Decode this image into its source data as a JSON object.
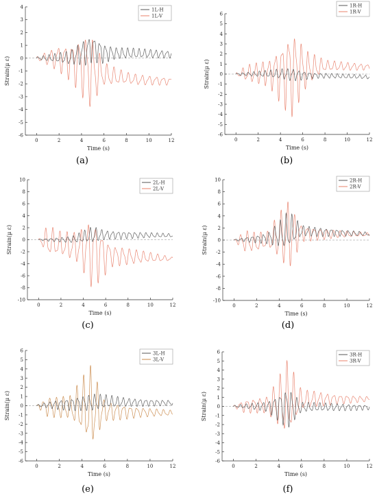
{
  "colors": {
    "h_series": "#555555",
    "v_series": "#e8806a",
    "v_series_alt": "#c9894a"
  },
  "chart_data": [
    {
      "panel": "(a)",
      "type": "line",
      "xlabel": "Time (s)",
      "ylabel": "Strain(μ ε)",
      "xlim": [
        -1,
        12
      ],
      "ylim": [
        -6,
        4
      ],
      "xticks": [
        0,
        2,
        4,
        6,
        8,
        10,
        12
      ],
      "yticks": [
        -6,
        -5,
        -4,
        -3,
        -2,
        -1,
        0,
        1,
        2,
        3,
        4
      ],
      "legend": "top-right",
      "series": [
        {
          "name": "1L-H",
          "color": "#555555",
          "baseline": [
            [
              0,
              0
            ],
            [
              3,
              0
            ],
            [
              5,
              0.8
            ],
            [
              6,
              0.4
            ],
            [
              12,
              0.3
            ]
          ],
          "amp": [
            [
              0,
              0.1
            ],
            [
              3,
              0.6
            ],
            [
              4.5,
              1.2
            ],
            [
              5.5,
              1.0
            ],
            [
              7,
              0.5
            ],
            [
              12,
              0.3
            ]
          ],
          "freq": 2.0
        },
        {
          "name": "1L-V",
          "color": "#e8806a",
          "baseline": [
            [
              0,
              0
            ],
            [
              2,
              0
            ],
            [
              3.5,
              -0.3
            ],
            [
              5,
              -1.0
            ],
            [
              6.5,
              -1.4
            ],
            [
              9,
              -1.7
            ],
            [
              12,
              -1.8
            ]
          ],
          "amp": [
            [
              0,
              0.1
            ],
            [
              1,
              0.6
            ],
            [
              3,
              1.6
            ],
            [
              4.8,
              3.2
            ],
            [
              6,
              1.0
            ],
            [
              8,
              0.5
            ],
            [
              12,
              0.3
            ]
          ],
          "freq": 1.6
        }
      ]
    },
    {
      "panel": "(b)",
      "type": "line",
      "xlabel": "Time (s)",
      "ylabel": "Strain(μ ε)",
      "xlim": [
        -1,
        12
      ],
      "ylim": [
        -6,
        6
      ],
      "xticks": [
        0,
        2,
        4,
        6,
        8,
        10,
        12
      ],
      "yticks": [
        -6,
        -5,
        -4,
        -3,
        -2,
        -1,
        0,
        1,
        2,
        3,
        4,
        5,
        6
      ],
      "legend": "top-right",
      "series": [
        {
          "name": "1R-H",
          "color": "#555555",
          "baseline": [
            [
              0,
              0
            ],
            [
              4,
              0
            ],
            [
              6,
              -0.1
            ],
            [
              9,
              -0.2
            ],
            [
              12,
              -0.3
            ]
          ],
          "amp": [
            [
              0,
              0.1
            ],
            [
              3,
              0.4
            ],
            [
              5,
              0.7
            ],
            [
              7,
              0.3
            ],
            [
              12,
              0.2
            ]
          ],
          "freq": 2.0
        },
        {
          "name": "1R-V",
          "color": "#e8806a",
          "baseline": [
            [
              0,
              0
            ],
            [
              4,
              0.2
            ],
            [
              6,
              0.5
            ],
            [
              8,
              0.8
            ],
            [
              12,
              0.7
            ]
          ],
          "amp": [
            [
              0,
              0.1
            ],
            [
              1,
              0.9
            ],
            [
              3,
              1.5
            ],
            [
              5,
              4.8
            ],
            [
              6.5,
              1.8
            ],
            [
              8,
              0.6
            ],
            [
              12,
              0.3
            ]
          ],
          "freq": 1.7
        }
      ]
    },
    {
      "panel": "(c)",
      "type": "line",
      "xlabel": "Time (s)",
      "ylabel": "Strain(μ ε)",
      "xlim": [
        -1,
        12
      ],
      "ylim": [
        -10,
        10
      ],
      "xticks": [
        0,
        2,
        4,
        6,
        8,
        10,
        12
      ],
      "yticks": [
        -10,
        -8,
        -6,
        -4,
        -2,
        0,
        2,
        4,
        6,
        8,
        10
      ],
      "legend": "top-right",
      "series": [
        {
          "name": "2L-H",
          "color": "#555555",
          "baseline": [
            [
              0,
              0
            ],
            [
              3,
              0
            ],
            [
              5,
              0.8
            ],
            [
              7,
              0.8
            ],
            [
              12,
              0.7
            ]
          ],
          "amp": [
            [
              0,
              0.1
            ],
            [
              3,
              0.6
            ],
            [
              4.8,
              1.5
            ],
            [
              6,
              0.8
            ],
            [
              12,
              0.3
            ]
          ],
          "freq": 2.0
        },
        {
          "name": "2L-V",
          "color": "#e8806a",
          "baseline": [
            [
              0,
              0
            ],
            [
              2,
              -0.8
            ],
            [
              4,
              -1.5
            ],
            [
              6,
              -2.5
            ],
            [
              8,
              -2.8
            ],
            [
              12,
              -3.2
            ]
          ],
          "amp": [
            [
              0,
              0.1
            ],
            [
              0.8,
              2.8
            ],
            [
              2,
              2.2
            ],
            [
              3.5,
              2.8
            ],
            [
              4.8,
              6.5
            ],
            [
              6.5,
              2.0
            ],
            [
              9,
              1.2
            ],
            [
              12,
              0.3
            ]
          ],
          "freq": 1.6
        }
      ]
    },
    {
      "panel": "(d)",
      "type": "line",
      "xlabel": "Time (s)",
      "ylabel": "Strain(μ ε)",
      "xlim": [
        -1,
        12
      ],
      "ylim": [
        -10,
        10
      ],
      "xticks": [
        0,
        2,
        4,
        6,
        8,
        10,
        12
      ],
      "yticks": [
        -10,
        -8,
        -6,
        -4,
        -2,
        0,
        2,
        4,
        6,
        8,
        10
      ],
      "legend": "top-right",
      "series": [
        {
          "name": "2R-H",
          "color": "#555555",
          "baseline": [
            [
              0,
              0
            ],
            [
              3,
              0.3
            ],
            [
              5,
              1.5
            ],
            [
              7,
              1.4
            ],
            [
              12,
              1.0
            ]
          ],
          "amp": [
            [
              0,
              0.1
            ],
            [
              3,
              1.0
            ],
            [
              4.8,
              3.5
            ],
            [
              6,
              1.0
            ],
            [
              12,
              0.3
            ]
          ],
          "freq": 2.0
        },
        {
          "name": "2R-V",
          "color": "#e8806a",
          "baseline": [
            [
              0,
              0
            ],
            [
              2,
              -0.5
            ],
            [
              4,
              0.5
            ],
            [
              6,
              1.2
            ],
            [
              8,
              1.0
            ],
            [
              12,
              0.9
            ]
          ],
          "amp": [
            [
              0,
              0.1
            ],
            [
              1,
              2.0
            ],
            [
              3,
              1.5
            ],
            [
              4.8,
              6.5
            ],
            [
              6,
              1.5
            ],
            [
              9,
              0.7
            ],
            [
              12,
              0.3
            ]
          ],
          "freq": 1.7
        }
      ]
    },
    {
      "panel": "(e)",
      "type": "line",
      "xlabel": "Time (s)",
      "ylabel": "Strain(μ ε)",
      "xlim": [
        -1,
        12
      ],
      "ylim": [
        -6,
        6
      ],
      "xticks": [
        0,
        2,
        4,
        6,
        8,
        10,
        12
      ],
      "yticks": [
        -6,
        -5,
        -4,
        -3,
        -2,
        -1,
        0,
        1,
        2,
        3,
        4,
        5,
        6
      ],
      "legend": "top-right",
      "series": [
        {
          "name": "3L-H",
          "color": "#555555",
          "baseline": [
            [
              0,
              0
            ],
            [
              3,
              0.2
            ],
            [
              6,
              0.4
            ],
            [
              12,
              0.3
            ]
          ],
          "amp": [
            [
              0,
              0.1
            ],
            [
              2,
              0.6
            ],
            [
              5,
              1.0
            ],
            [
              8,
              0.5
            ],
            [
              12,
              0.3
            ]
          ],
          "freq": 2.0
        },
        {
          "name": "3L-V",
          "color": "#c9894a",
          "baseline": [
            [
              0,
              0
            ],
            [
              2,
              -0.2
            ],
            [
              4,
              -0.3
            ],
            [
              6,
              -0.6
            ],
            [
              9,
              -0.7
            ],
            [
              12,
              -0.8
            ]
          ],
          "amp": [
            [
              0,
              0.1
            ],
            [
              1,
              1.2
            ],
            [
              3,
              1.4
            ],
            [
              4.8,
              5.0
            ],
            [
              6,
              1.2
            ],
            [
              9,
              0.6
            ],
            [
              12,
              0.3
            ]
          ],
          "freq": 1.7
        }
      ]
    },
    {
      "panel": "(f)",
      "type": "line",
      "xlabel": "Time (s)",
      "ylabel": "Strain(μ ε)",
      "xlim": [
        -1,
        12
      ],
      "ylim": [
        -6,
        6
      ],
      "xticks": [
        0,
        2,
        4,
        6,
        8,
        10,
        12
      ],
      "yticks": [
        -6,
        -5,
        -4,
        -3,
        -2,
        -1,
        0,
        1,
        2,
        3,
        4,
        5,
        6
      ],
      "legend": "top-right",
      "series": [
        {
          "name": "3R-H",
          "color": "#555555",
          "baseline": [
            [
              0,
              0
            ],
            [
              4,
              0
            ],
            [
              6,
              -0.1
            ],
            [
              12,
              -0.1
            ]
          ],
          "amp": [
            [
              0,
              0.1
            ],
            [
              3,
              0.6
            ],
            [
              4.8,
              2.5
            ],
            [
              6,
              0.6
            ],
            [
              12,
              0.3
            ]
          ],
          "freq": 2.0
        },
        {
          "name": "3R-V",
          "color": "#e8806a",
          "baseline": [
            [
              0,
              0
            ],
            [
              3,
              0.2
            ],
            [
              5,
              0.5
            ],
            [
              7,
              0.8
            ],
            [
              12,
              0.8
            ]
          ],
          "amp": [
            [
              0,
              0.1
            ],
            [
              1,
              0.8
            ],
            [
              3,
              1.0
            ],
            [
              4.8,
              4.8
            ],
            [
              6,
              1.2
            ],
            [
              9,
              0.6
            ],
            [
              12,
              0.3
            ]
          ],
          "freq": 1.7
        }
      ]
    }
  ]
}
